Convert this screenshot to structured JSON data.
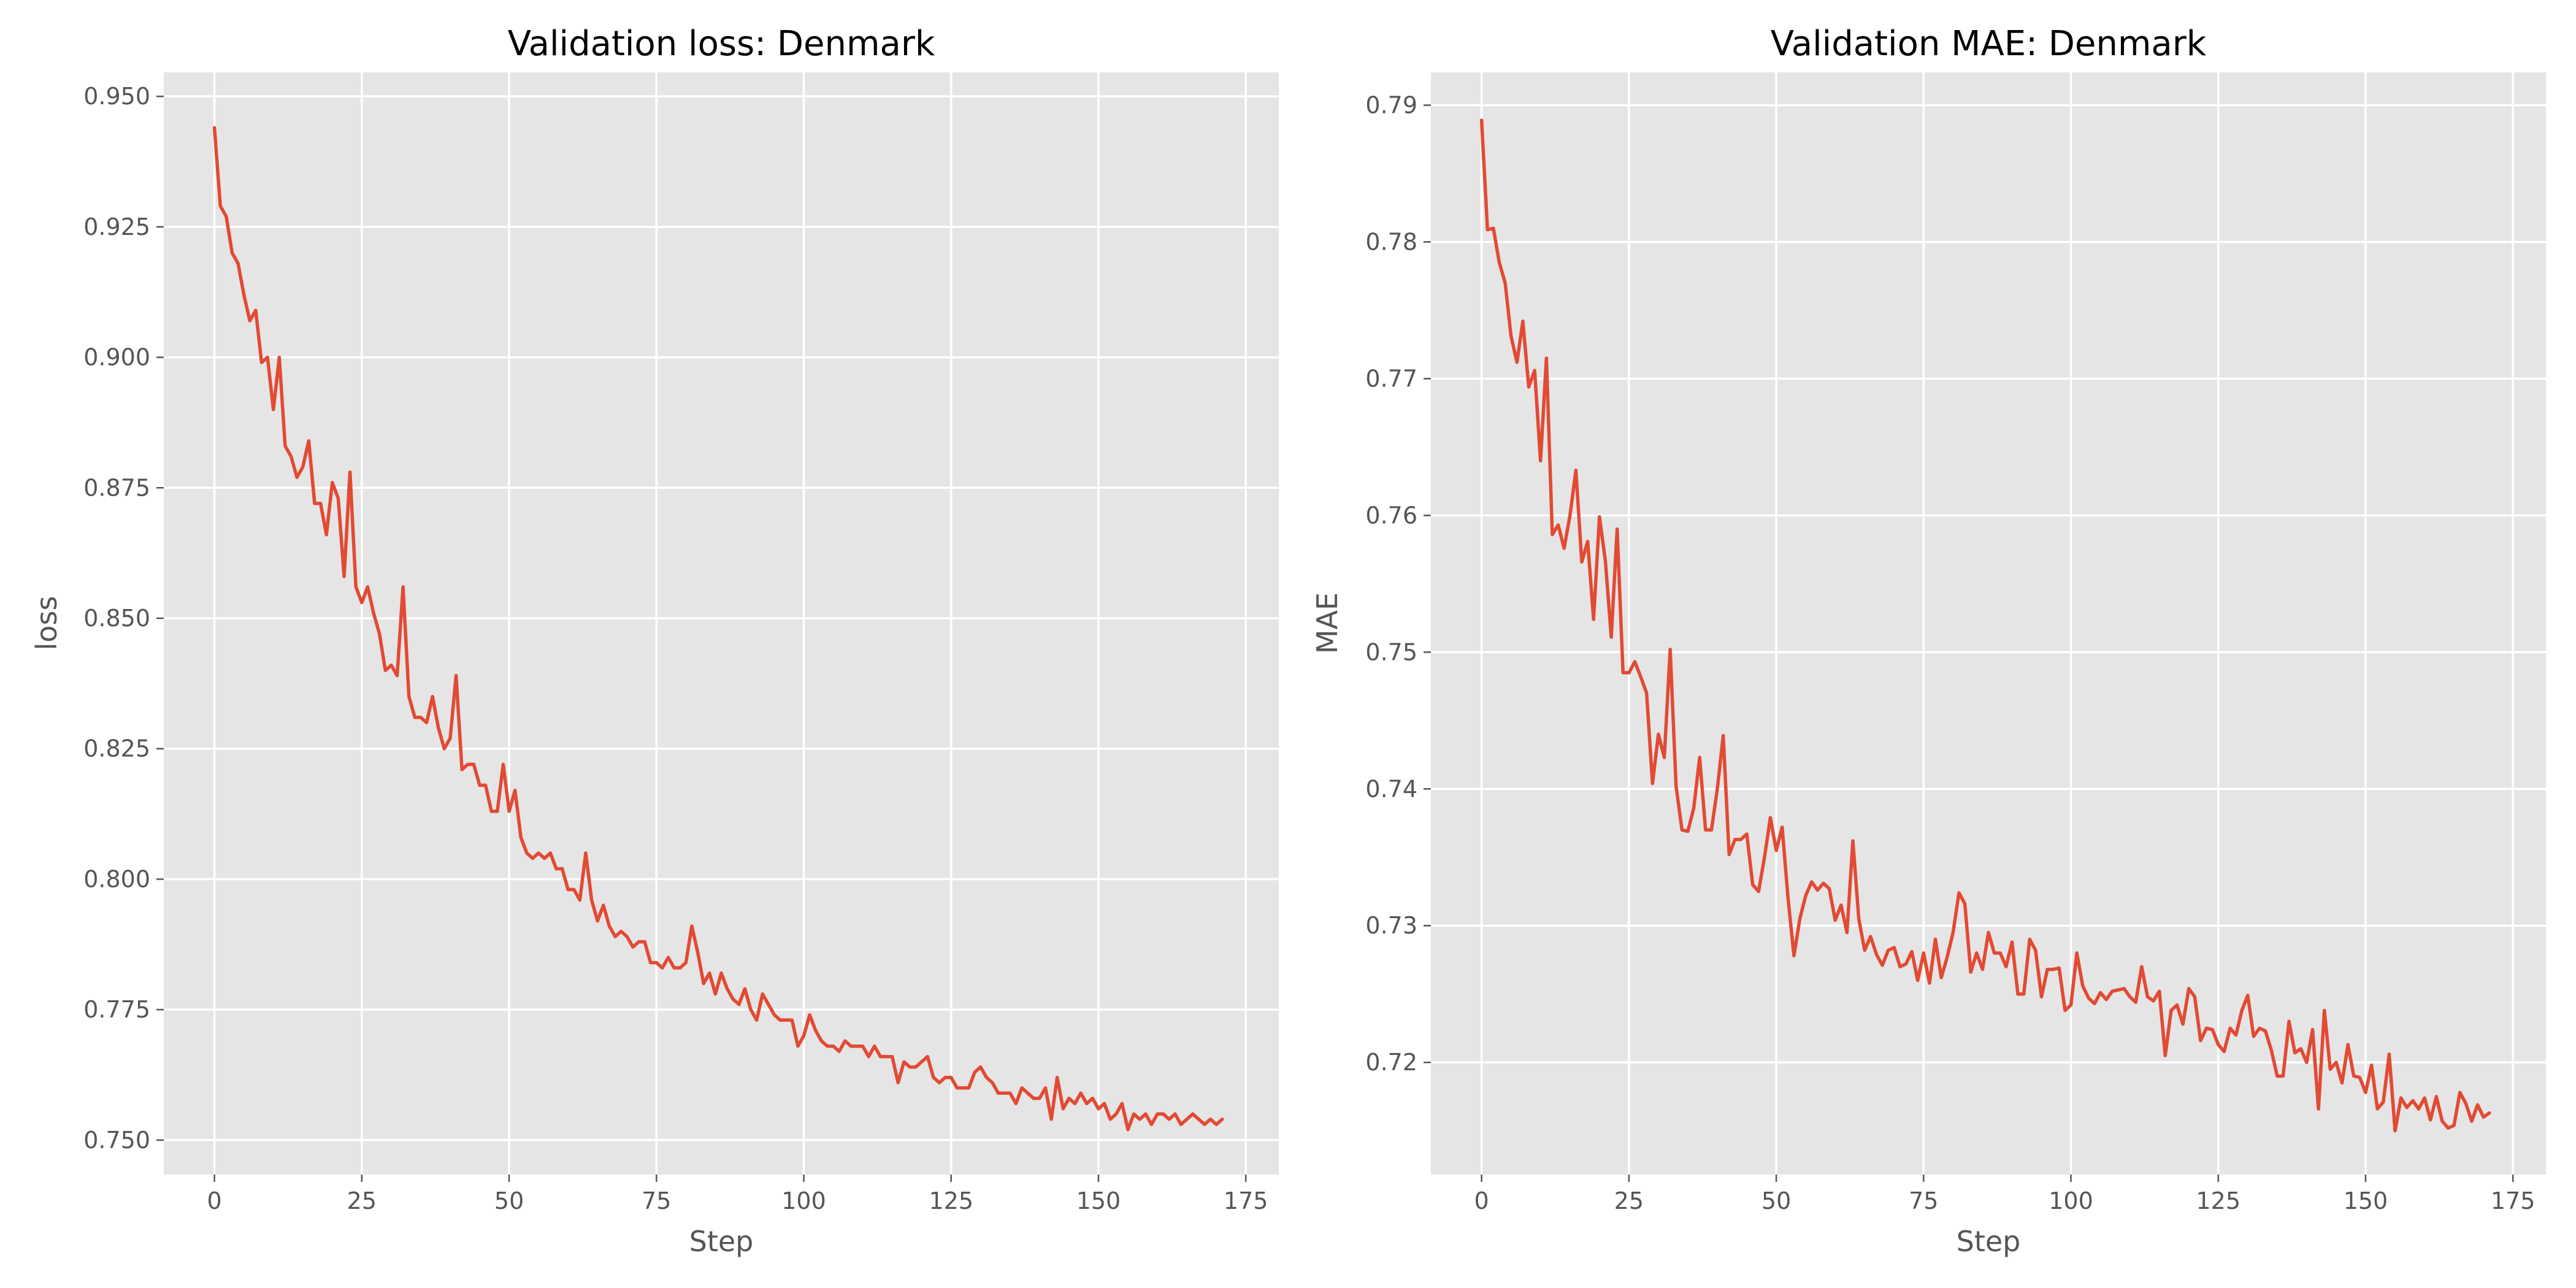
{
  "colors": {
    "series": "#E24A33",
    "plot_background": "#E5E5E5",
    "grid": "#FFFFFF",
    "tick_text": "#555555"
  },
  "chart_data": [
    {
      "type": "line",
      "title": "Validation loss: Denmark",
      "xlabel": "Step",
      "ylabel": "loss",
      "xlim": [
        -8.6,
        180.6
      ],
      "ylim": [
        0.7434,
        0.9546
      ],
      "xticks": [
        0,
        25,
        50,
        75,
        100,
        125,
        150,
        175
      ],
      "xtick_labels": [
        "0",
        "25",
        "50",
        "75",
        "100",
        "125",
        "150",
        "175"
      ],
      "yticks": [
        0.75,
        0.775,
        0.8,
        0.825,
        0.85,
        0.875,
        0.9,
        0.925,
        0.95
      ],
      "ytick_labels": [
        "0.750",
        "0.775",
        "0.800",
        "0.825",
        "0.850",
        "0.875",
        "0.900",
        "0.925",
        "0.950"
      ],
      "grid": true,
      "series": [
        {
          "x_start": 0,
          "x_step": 1,
          "values": [
            0.944,
            0.929,
            0.927,
            0.92,
            0.918,
            0.912,
            0.907,
            0.909,
            0.899,
            0.9,
            0.89,
            0.9,
            0.883,
            0.881,
            0.877,
            0.879,
            0.884,
            0.872,
            0.872,
            0.866,
            0.876,
            0.873,
            0.858,
            0.878,
            0.856,
            0.853,
            0.856,
            0.851,
            0.847,
            0.84,
            0.841,
            0.839,
            0.856,
            0.835,
            0.831,
            0.831,
            0.83,
            0.835,
            0.829,
            0.825,
            0.827,
            0.839,
            0.821,
            0.822,
            0.822,
            0.818,
            0.818,
            0.813,
            0.813,
            0.822,
            0.813,
            0.817,
            0.808,
            0.805,
            0.804,
            0.805,
            0.804,
            0.805,
            0.802,
            0.802,
            0.798,
            0.798,
            0.796,
            0.805,
            0.796,
            0.792,
            0.795,
            0.791,
            0.789,
            0.79,
            0.789,
            0.787,
            0.788,
            0.788,
            0.784,
            0.784,
            0.783,
            0.785,
            0.783,
            0.783,
            0.784,
            0.791,
            0.786,
            0.78,
            0.782,
            0.778,
            0.782,
            0.779,
            0.777,
            0.776,
            0.779,
            0.775,
            0.773,
            0.778,
            0.776,
            0.774,
            0.773,
            0.773,
            0.773,
            0.768,
            0.77,
            0.774,
            0.771,
            0.769,
            0.768,
            0.768,
            0.767,
            0.769,
            0.768,
            0.768,
            0.768,
            0.766,
            0.768,
            0.766,
            0.766,
            0.766,
            0.761,
            0.765,
            0.764,
            0.764,
            0.765,
            0.766,
            0.762,
            0.761,
            0.762,
            0.762,
            0.76,
            0.76,
            0.76,
            0.763,
            0.764,
            0.762,
            0.761,
            0.759,
            0.759,
            0.759,
            0.757,
            0.76,
            0.759,
            0.758,
            0.758,
            0.76,
            0.754,
            0.762,
            0.756,
            0.758,
            0.757,
            0.759,
            0.757,
            0.758,
            0.756,
            0.757,
            0.754,
            0.755,
            0.757,
            0.752,
            0.755,
            0.754,
            0.755,
            0.753,
            0.755,
            0.755,
            0.754,
            0.755,
            0.753,
            0.754,
            0.755,
            0.754,
            0.753,
            0.754,
            0.753,
            0.754
          ]
        }
      ]
    },
    {
      "type": "line",
      "title": "Validation MAE: Denmark",
      "xlabel": "Step",
      "ylabel": "MAE",
      "xlim": [
        -8.6,
        180.6
      ],
      "ylim": [
        0.7118,
        0.7924
      ],
      "xticks": [
        0,
        25,
        50,
        75,
        100,
        125,
        150,
        175
      ],
      "xtick_labels": [
        "0",
        "25",
        "50",
        "75",
        "100",
        "125",
        "150",
        "175"
      ],
      "yticks": [
        0.72,
        0.73,
        0.74,
        0.75,
        0.76,
        0.77,
        0.78,
        0.79
      ],
      "ytick_labels": [
        "0.72",
        "0.73",
        "0.74",
        "0.75",
        "0.76",
        "0.77",
        "0.78",
        "0.79"
      ],
      "grid": true,
      "series": [
        {
          "x_start": 0,
          "x_step": 1,
          "values": [
            0.7889,
            0.7809,
            0.781,
            0.7785,
            0.777,
            0.7731,
            0.7712,
            0.7742,
            0.7694,
            0.7706,
            0.764,
            0.7715,
            0.7586,
            0.7593,
            0.7576,
            0.76,
            0.7633,
            0.7566,
            0.7581,
            0.7524,
            0.7599,
            0.7567,
            0.7511,
            0.759,
            0.7485,
            0.7485,
            0.7493,
            0.7482,
            0.747,
            0.7404,
            0.744,
            0.7423,
            0.7502,
            0.7402,
            0.737,
            0.7369,
            0.7386,
            0.7423,
            0.737,
            0.737,
            0.74,
            0.7439,
            0.7352,
            0.7363,
            0.7363,
            0.7367,
            0.733,
            0.7325,
            0.735,
            0.7379,
            0.7355,
            0.7372,
            0.732,
            0.7278,
            0.7305,
            0.7322,
            0.7332,
            0.7326,
            0.7331,
            0.7327,
            0.7304,
            0.7315,
            0.7295,
            0.7362,
            0.7305,
            0.7282,
            0.7292,
            0.7279,
            0.7271,
            0.7282,
            0.7284,
            0.727,
            0.7272,
            0.7281,
            0.726,
            0.728,
            0.7258,
            0.729,
            0.7262,
            0.7277,
            0.7295,
            0.7324,
            0.7316,
            0.7266,
            0.728,
            0.7268,
            0.7295,
            0.728,
            0.728,
            0.727,
            0.7288,
            0.725,
            0.725,
            0.729,
            0.7282,
            0.7248,
            0.7268,
            0.7268,
            0.7269,
            0.7238,
            0.7242,
            0.728,
            0.7256,
            0.7247,
            0.7243,
            0.7251,
            0.7246,
            0.7252,
            0.7253,
            0.7254,
            0.7248,
            0.7244,
            0.727,
            0.7248,
            0.7245,
            0.7252,
            0.7205,
            0.7238,
            0.7242,
            0.7228,
            0.7254,
            0.7248,
            0.7216,
            0.7225,
            0.7224,
            0.7213,
            0.7208,
            0.7225,
            0.722,
            0.7238,
            0.7249,
            0.7219,
            0.7225,
            0.7223,
            0.7209,
            0.719,
            0.719,
            0.723,
            0.7207,
            0.721,
            0.72,
            0.7224,
            0.7166,
            0.7238,
            0.7195,
            0.72,
            0.7185,
            0.7213,
            0.719,
            0.7189,
            0.7178,
            0.7198,
            0.7166,
            0.7171,
            0.7206,
            0.715,
            0.7174,
            0.7167,
            0.7172,
            0.7166,
            0.7174,
            0.7158,
            0.7175,
            0.7157,
            0.7152,
            0.7154,
            0.7178,
            0.717,
            0.7157,
            0.7169,
            0.716,
            0.7163
          ]
        }
      ]
    }
  ]
}
